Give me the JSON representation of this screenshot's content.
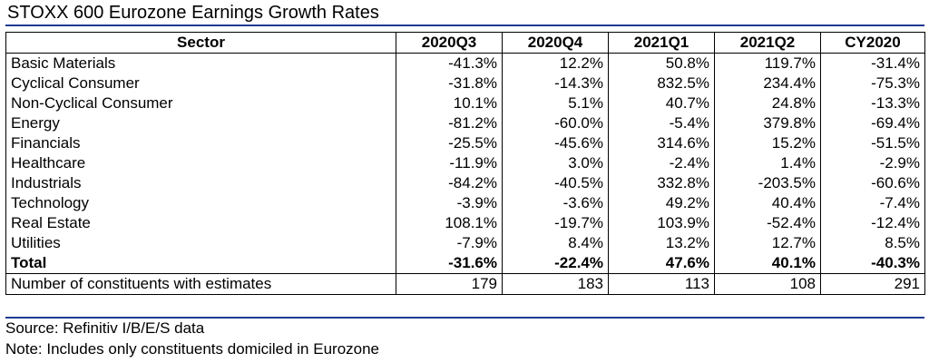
{
  "title": "STOXX 600 Eurozone Earnings Growth Rates",
  "table": {
    "headers": [
      "Sector",
      "2020Q3",
      "2020Q4",
      "2021Q1",
      "2021Q2",
      "CY2020"
    ],
    "rows": [
      {
        "label": "Basic Materials",
        "values": [
          "-41.3%",
          "12.2%",
          "50.8%",
          "119.7%",
          "-31.4%"
        ]
      },
      {
        "label": "Cyclical Consumer",
        "values": [
          "-31.8%",
          "-14.3%",
          "832.5%",
          "234.4%",
          "-75.3%"
        ]
      },
      {
        "label": "Non-Cyclical Consumer",
        "values": [
          "10.1%",
          "5.1%",
          "40.7%",
          "24.8%",
          "-13.3%"
        ]
      },
      {
        "label": "Energy",
        "values": [
          "-81.2%",
          "-60.0%",
          "-5.4%",
          "379.8%",
          "-69.4%"
        ]
      },
      {
        "label": "Financials",
        "values": [
          "-25.5%",
          "-45.6%",
          "314.6%",
          "15.2%",
          "-51.5%"
        ]
      },
      {
        "label": "Healthcare",
        "values": [
          "-11.9%",
          "3.0%",
          "-2.4%",
          "1.4%",
          "-2.9%"
        ]
      },
      {
        "label": "Industrials",
        "values": [
          "-84.2%",
          "-40.5%",
          "332.8%",
          "-203.5%",
          "-60.6%"
        ]
      },
      {
        "label": "Technology",
        "values": [
          "-3.9%",
          "-3.6%",
          "49.2%",
          "40.4%",
          "-7.4%"
        ]
      },
      {
        "label": "Real Estate",
        "values": [
          "108.1%",
          "-19.7%",
          "103.9%",
          "-52.4%",
          "-12.4%"
        ]
      },
      {
        "label": "Utilities",
        "values": [
          "-7.9%",
          "8.4%",
          "13.2%",
          "12.7%",
          "8.5%"
        ]
      }
    ],
    "total": {
      "label": "Total",
      "values": [
        "-31.6%",
        "-22.4%",
        "47.6%",
        "40.1%",
        "-40.3%"
      ]
    },
    "count": {
      "label": "Number of constituents with estimates",
      "values": [
        "179",
        "183",
        "113",
        "108",
        "291"
      ]
    }
  },
  "source": "Source: Refinitiv I/B/E/S data",
  "note": "Note: Includes only constituents domiciled in Eurozone"
}
